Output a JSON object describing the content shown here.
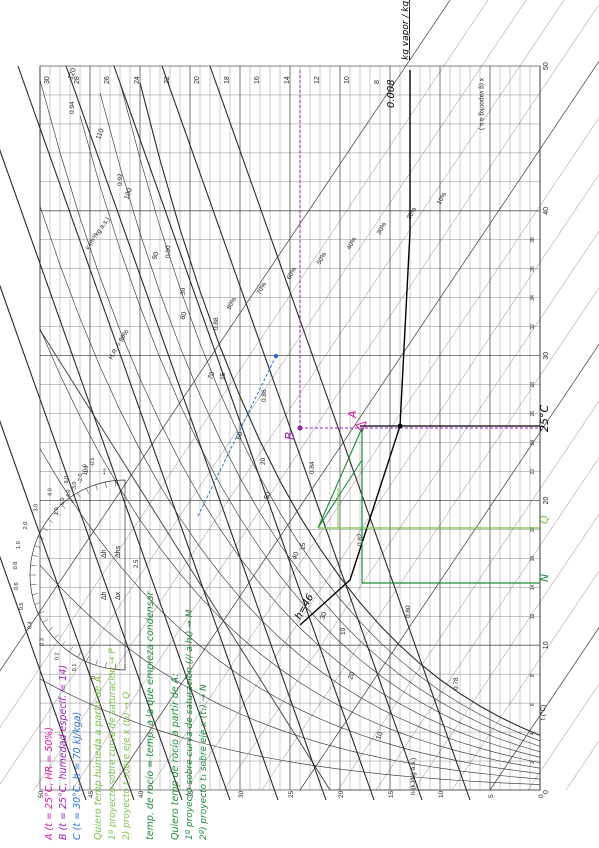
{
  "chart": {
    "x_axis": {
      "label": "x (g vapor/kg a.s.)",
      "ticks": [
        "0",
        "10",
        "20",
        "30",
        "40",
        "50"
      ],
      "minor_ticks": [
        "2",
        "4",
        "6",
        "8",
        "12",
        "14",
        "16",
        "18",
        "22",
        "24",
        "26",
        "28",
        "32",
        "34",
        "36",
        "38"
      ]
    },
    "t_axis": {
      "label": "t (°C)",
      "ticks": [
        "0",
        "5",
        "10",
        "15",
        "20",
        "25",
        "30",
        "35",
        "40",
        "45",
        "50"
      ]
    },
    "h_axis": {
      "label": "h (kJ/kg a.s.)",
      "ticks": [
        "10",
        "20",
        "30",
        "40",
        "50",
        "60",
        "70",
        "80",
        "90",
        "100",
        "110",
        "120"
      ]
    },
    "top_scale_ticks": [
      "30",
      "28",
      "26",
      "24",
      "22",
      "20",
      "18",
      "16",
      "14",
      "12",
      "10",
      "8"
    ],
    "twb_ticks": [
      "10",
      "15",
      "20",
      "25",
      "30"
    ],
    "v_labels": [
      "0.78",
      "0.80",
      "0.82",
      "0.84",
      "0.86",
      "0.88",
      "0.90",
      "0.92",
      "0.94"
    ],
    "v_axis_label": "v (m³/kg a.s.)",
    "rh_labels": [
      "10%",
      "20%",
      "30%",
      "40%",
      "50%",
      "60%",
      "70%",
      "80%"
    ],
    "rh_axis_label": "H.R. = 90%",
    "protractor": {
      "symbol_top": "Δh",
      "symbol_bottom": "Δhs",
      "symbol2_top": "Δh",
      "symbol2_bottom": "Δx",
      "left_ticks": [
        "+∞",
        "10.0",
        "6.0",
        "4.0",
        "3.0",
        "2.0",
        "1.0",
        "0.8",
        "0.6",
        "0.5",
        "0.4",
        "0.3",
        "0.2",
        "0.1",
        "0"
      ],
      "right_ticks": [
        "1.0",
        "-5.0",
        "-4.0",
        "-3.0",
        "-2.0",
        "-1.0",
        "-0.5"
      ],
      "center_tick": "2.5"
    }
  },
  "handwriting": {
    "col_A": "A (t = 25°C, HR = 50%)",
    "col_B": "B (t = 25°C, humedad específ. = 14)",
    "col_C": "C (t = 30°C, h = 70 kJ/kga)",
    "col_D": "Quiero temp húmeda a partir de A:",
    "col_E": "1º proyecto sobre curva de saturación → P",
    "col_F": "2) proyecto t sobre eje x (t₁) → Q",
    "col_G": "temp. de rocío = temp. a la que empieza condensar",
    "col_H": "Quiero temp de rocío a partir de A:",
    "col_I": "1º proyecto sobre curva de saturación (// a h₁) → M",
    "col_J": "2º) proyecto t₁ sobre eje x (t₁) → N",
    "point_A": "A",
    "point_B": "B",
    "label_25": "25°C",
    "label_Q": "Q",
    "label_N": "N",
    "label_h46": "h=46",
    "label_0008": "0.008",
    "label_kgvapor": "kg vapor / kg aire",
    "label_inf": "+∞"
  },
  "colors": {
    "grid": "#4a4a4a",
    "magenta": "#e0199f",
    "purple": "#9b1fb4",
    "blue": "#2a6fd8",
    "black": "#000000",
    "green_dark": "#1f8a3b",
    "green_light": "#7cc24a"
  }
}
